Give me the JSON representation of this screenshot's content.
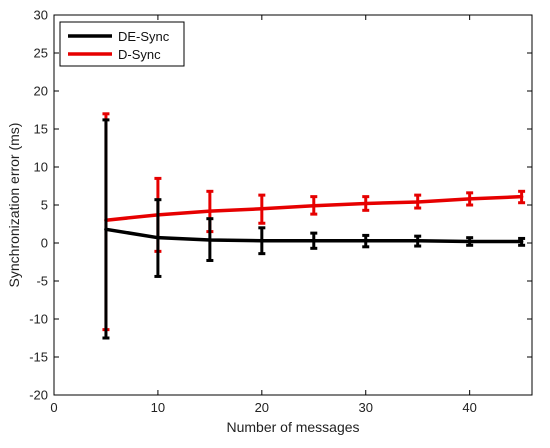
{
  "chart_data": {
    "type": "line",
    "xlabel": "Number of messages",
    "ylabel": "Synchronization error (ms)",
    "xlim": [
      0,
      46
    ],
    "ylim": [
      -20,
      30
    ],
    "x_ticks": [
      0,
      10,
      20,
      30,
      40
    ],
    "y_ticks": [
      -20,
      -15,
      -10,
      -5,
      0,
      5,
      10,
      15,
      20,
      25,
      30
    ],
    "grid": false,
    "legend_position": "top-left",
    "series": [
      {
        "name": "DE-Sync",
        "color": "#000000",
        "x": [
          5,
          10,
          15,
          20,
          25,
          30,
          35,
          40,
          45
        ],
        "y": [
          1.8,
          0.7,
          0.4,
          0.3,
          0.3,
          0.3,
          0.3,
          0.2,
          0.2
        ],
        "err_low": [
          -12.5,
          -4.4,
          -2.3,
          -1.4,
          -0.7,
          -0.5,
          -0.4,
          -0.3,
          -0.3
        ],
        "err_high": [
          16.2,
          5.7,
          3.2,
          2.0,
          1.3,
          1.0,
          0.9,
          0.7,
          0.6
        ]
      },
      {
        "name": "D-Sync",
        "color": "#e60000",
        "x": [
          5,
          10,
          15,
          20,
          25,
          30,
          35,
          40,
          45
        ],
        "y": [
          3.0,
          3.7,
          4.2,
          4.5,
          4.9,
          5.2,
          5.4,
          5.8,
          6.1
        ],
        "err_low": [
          -11.4,
          -1.1,
          1.5,
          2.6,
          3.8,
          4.3,
          4.6,
          5.0,
          5.3
        ],
        "err_high": [
          17.0,
          8.5,
          6.8,
          6.3,
          6.1,
          6.1,
          6.3,
          6.6,
          6.8
        ]
      }
    ]
  }
}
